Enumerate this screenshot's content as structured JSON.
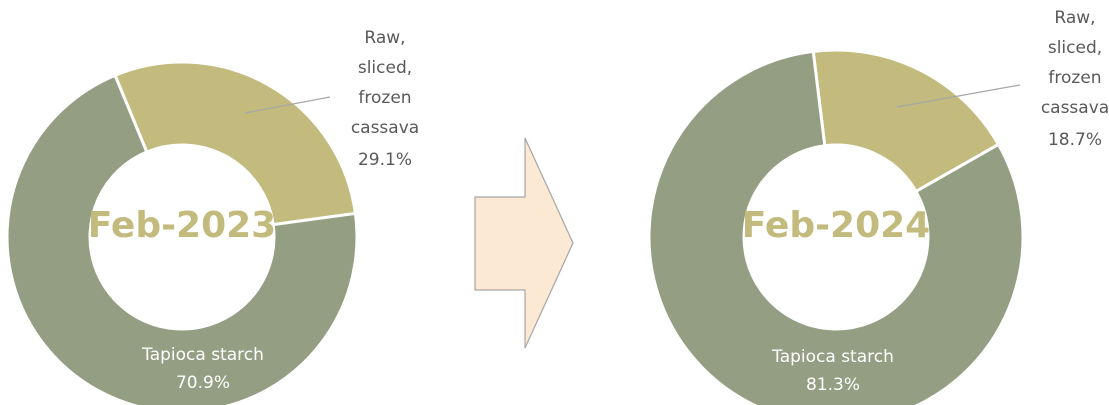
{
  "chart_data": [
    {
      "type": "donut",
      "center_label": "Feb-2023",
      "categories": [
        "Raw, sliced, frozen cassava",
        "Tapioca starch"
      ],
      "values": [
        29.1,
        70.9
      ],
      "value_labels": [
        "29.1%",
        "70.9%"
      ],
      "colors": [
        "#c2bb7d",
        "#949e83"
      ]
    },
    {
      "type": "donut",
      "center_label": "Feb-2024",
      "categories": [
        "Raw, sliced, frozen cassava",
        "Tapioca starch"
      ],
      "values": [
        18.7,
        81.3
      ],
      "value_labels": [
        "18.7%",
        "81.3%"
      ],
      "colors": [
        "#c2bb7d",
        "#949e83"
      ]
    }
  ]
}
